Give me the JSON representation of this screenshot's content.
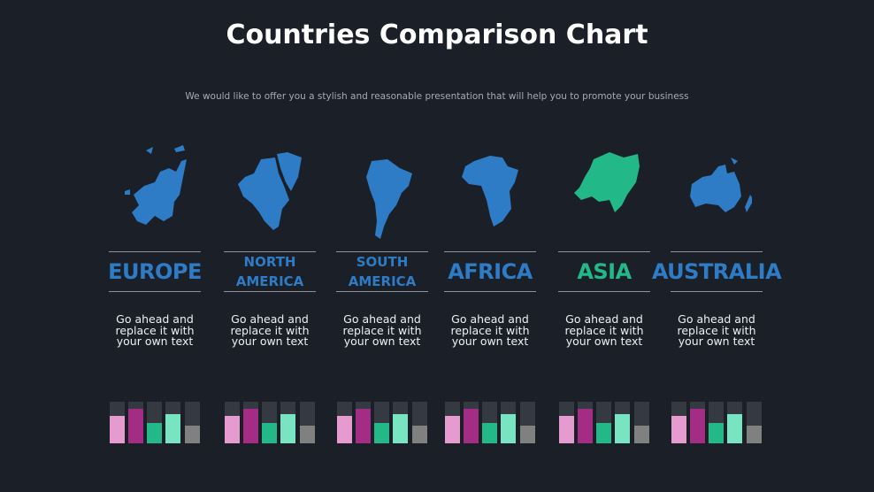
{
  "header": {
    "title": "Countries Comparison Chart",
    "subtitle": "We would like to offer you a stylish and reasonable presentation that will help you to promote your business"
  },
  "colors": {
    "background": "#1b1f27",
    "region_blue": "#2e7bc6",
    "region_highlight": "#22b888",
    "bar_track": "#353a42",
    "bar_colors": [
      "#e59ad0",
      "#a32c84",
      "#22b888",
      "#78e4c1",
      "#808080"
    ]
  },
  "regions": [
    {
      "name": "EUROPE",
      "icon": "europe-map-icon",
      "color": "#2e7bc6",
      "description": "Go ahead and replace it with your own text"
    },
    {
      "name": "NORTH AMERICA",
      "icon": "north-america-map-icon",
      "color": "#2e7bc6",
      "description": "Go ahead and replace it with your own text"
    },
    {
      "name": "SOUTH AMERICA",
      "icon": "south-america-map-icon",
      "color": "#2e7bc6",
      "description": "Go ahead and replace it with your own text"
    },
    {
      "name": "AFRICA",
      "icon": "africa-map-icon",
      "color": "#2e7bc6",
      "description": "Go ahead and replace it with your own text"
    },
    {
      "name": "ASIA",
      "icon": "asia-map-icon",
      "color": "#22b888",
      "description": "Go ahead and replace it with your own text"
    },
    {
      "name": "AUSTRALIA",
      "icon": "australia-map-icon",
      "color": "#2e7bc6",
      "description": "Go ahead and replace it with your own text"
    }
  ],
  "chart_data": {
    "type": "bar",
    "ylim": [
      0,
      1
    ],
    "grid": false,
    "categories": [
      "EUROPE",
      "NORTH AMERICA",
      "SOUTH AMERICA",
      "AFRICA",
      "ASIA",
      "AUSTRALIA"
    ],
    "series": [
      {
        "values": [
          0.65,
          0.65,
          0.65,
          0.65,
          0.65,
          0.65
        ]
      },
      {
        "values": [
          0.84,
          0.84,
          0.84,
          0.84,
          0.84,
          0.84
        ]
      },
      {
        "values": [
          0.48,
          0.48,
          0.48,
          0.48,
          0.48,
          0.48
        ]
      },
      {
        "values": [
          0.71,
          0.71,
          0.71,
          0.71,
          0.71,
          0.71
        ]
      },
      {
        "values": [
          0.43,
          0.43,
          0.43,
          0.43,
          0.43,
          0.43
        ]
      }
    ]
  }
}
